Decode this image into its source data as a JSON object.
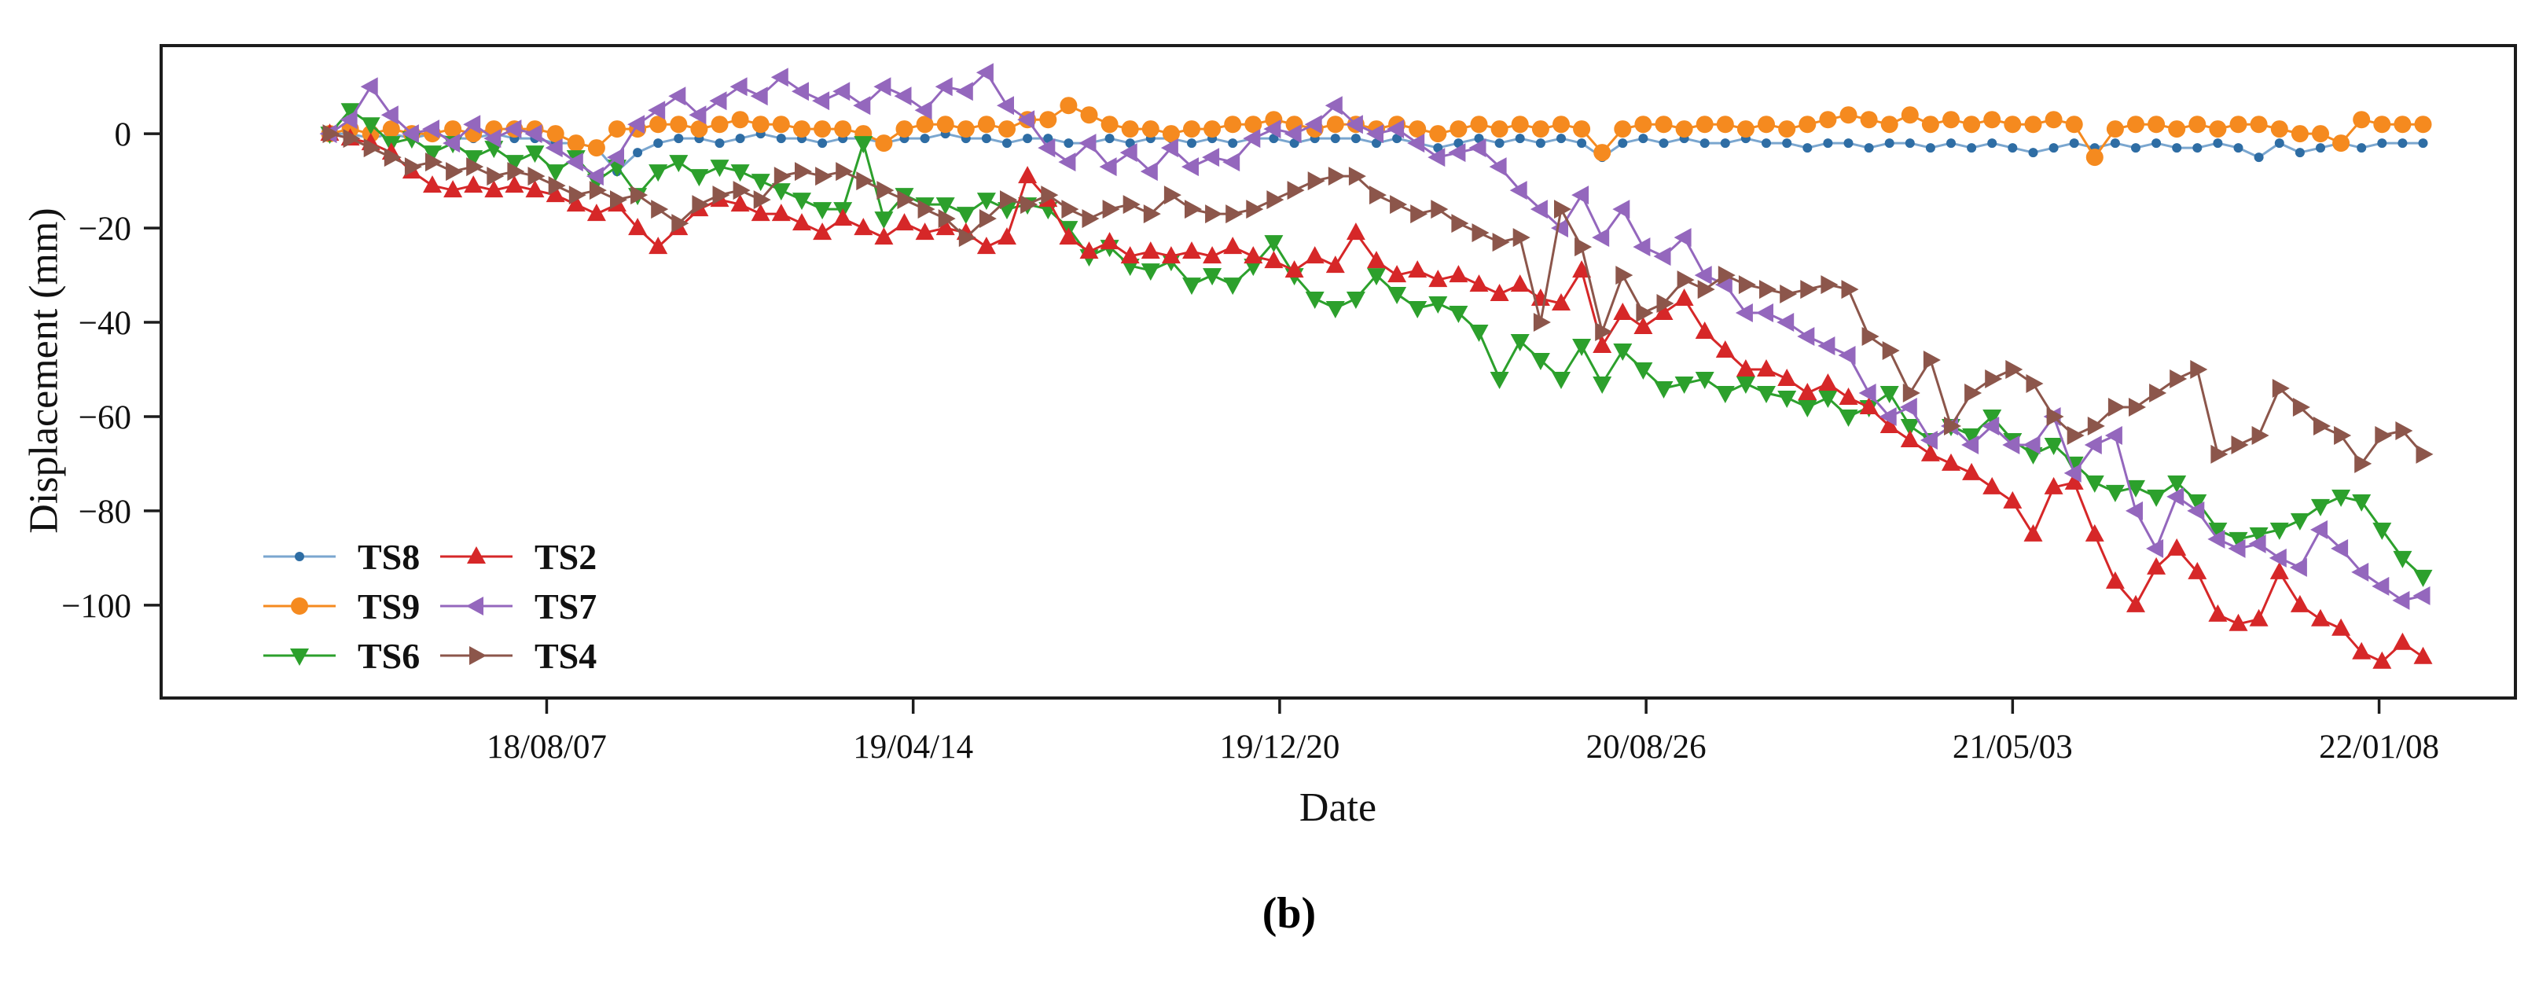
{
  "caption": "(b)",
  "chart_data": {
    "type": "line",
    "title": "",
    "xlabel": "Date",
    "ylabel": "Displacement (mm)",
    "grid": false,
    "legend_position": "lower-left-inside, two columns, no frame",
    "x_tick_labels": [
      "18/08/07",
      "19/04/14",
      "19/12/20",
      "20/08/26",
      "21/05/03",
      "22/01/08"
    ],
    "x_tick_days": [
      148,
      398,
      648,
      898,
      1148,
      1398
    ],
    "xlim_days": [
      -115,
      1491
    ],
    "y_ticks": [
      0,
      -20,
      -40,
      -60,
      -80,
      -100
    ],
    "ylim": [
      -119.7,
      18.7
    ],
    "x_start_day": 0,
    "x_step_days": 14,
    "axis_color": "#1c1c1c",
    "legend_order": [
      "TS8",
      "TS9",
      "TS6",
      "TS2",
      "TS7",
      "TS4"
    ],
    "series": [
      {
        "name": "TS8",
        "marker": "dot",
        "color": "#7aa6cf",
        "marker_color": "#2e6da4",
        "values": [
          0,
          0,
          -1,
          0,
          -1,
          0,
          -1,
          -1,
          0,
          -1,
          -1,
          -2,
          -2,
          -3,
          -8,
          -4,
          -2,
          -1,
          -1,
          -2,
          -1,
          0,
          -1,
          -1,
          -2,
          -1,
          -1,
          -2,
          -1,
          -1,
          0,
          -1,
          -1,
          -2,
          -1,
          -1,
          -2,
          -2,
          -1,
          -2,
          -1,
          -1,
          -2,
          -1,
          -2,
          -1,
          -1,
          -2,
          -1,
          -1,
          -1,
          -2,
          -1,
          -2,
          -3,
          -2,
          -1,
          -2,
          -1,
          -2,
          -1,
          -2,
          -5,
          -2,
          -1,
          -2,
          -1,
          -2,
          -2,
          -1,
          -2,
          -2,
          -3,
          -2,
          -2,
          -3,
          -2,
          -2,
          -3,
          -2,
          -3,
          -2,
          -3,
          -4,
          -3,
          -2,
          -3,
          -2,
          -3,
          -2,
          -3,
          -3,
          -2,
          -3,
          -5,
          -2,
          -4,
          -3,
          -2,
          -3,
          -2,
          -2,
          -2
        ]
      },
      {
        "name": "TS9",
        "marker": "circle",
        "color": "#f58a1f",
        "marker_color": "#f58a1f",
        "values": [
          0,
          1,
          0,
          1,
          0,
          0,
          1,
          0,
          1,
          1,
          1,
          0,
          -2,
          -3,
          1,
          1,
          2,
          2,
          1,
          2,
          3,
          2,
          2,
          1,
          1,
          1,
          0,
          -2,
          1,
          2,
          2,
          1,
          2,
          1,
          3,
          3,
          6,
          4,
          2,
          1,
          1,
          0,
          1,
          1,
          2,
          2,
          3,
          2,
          1,
          2,
          2,
          1,
          2,
          1,
          0,
          1,
          2,
          1,
          2,
          1,
          2,
          1,
          -4,
          1,
          2,
          2,
          1,
          2,
          2,
          1,
          2,
          1,
          2,
          3,
          4,
          3,
          2,
          4,
          2,
          3,
          2,
          3,
          2,
          2,
          3,
          2,
          -5,
          1,
          2,
          2,
          1,
          2,
          1,
          2,
          2,
          1,
          0,
          0,
          -2,
          3,
          2,
          2,
          2
        ]
      },
      {
        "name": "TS6",
        "marker": "triangle-down",
        "color": "#2ca02c",
        "marker_color": "#2ca02c",
        "values": [
          0,
          5,
          2,
          -2,
          -1,
          -4,
          -2,
          -5,
          -3,
          -6,
          -4,
          -8,
          -5,
          -10,
          -7,
          -13,
          -8,
          -6,
          -9,
          -7,
          -8,
          -10,
          -12,
          -14,
          -16,
          -16,
          -2,
          -18,
          -13,
          -15,
          -15,
          -17,
          -14,
          -16,
          -15,
          -16,
          -20,
          -26,
          -24,
          -28,
          -29,
          -27,
          -32,
          -30,
          -32,
          -28,
          -23,
          -30,
          -35,
          -37,
          -35,
          -30,
          -34,
          -37,
          -36,
          -38,
          -42,
          -52,
          -44,
          -48,
          -52,
          -45,
          -53,
          -46,
          -50,
          -54,
          -53,
          -52,
          -55,
          -53,
          -55,
          -56,
          -58,
          -56,
          -60,
          -58,
          -55,
          -62,
          -65,
          -62,
          -64,
          -60,
          -65,
          -68,
          -66,
          -70,
          -74,
          -76,
          -75,
          -77,
          -74,
          -78,
          -84,
          -86,
          -85,
          -84,
          -82,
          -79,
          -77,
          -78,
          -84,
          -90,
          -94
        ]
      },
      {
        "name": "TS2",
        "marker": "triangle-up",
        "color": "#d62728",
        "marker_color": "#d62728",
        "values": [
          0,
          -1,
          -2,
          -4,
          -8,
          -11,
          -12,
          -11,
          -12,
          -11,
          -12,
          -13,
          -15,
          -17,
          -15,
          -20,
          -24,
          -20,
          -16,
          -14,
          -15,
          -17,
          -17,
          -19,
          -21,
          -18,
          -20,
          -22,
          -19,
          -21,
          -20,
          -21,
          -24,
          -22,
          -9,
          -14,
          -22,
          -25,
          -23,
          -26,
          -25,
          -26,
          -25,
          -26,
          -24,
          -26,
          -27,
          -29,
          -26,
          -28,
          -21,
          -27,
          -30,
          -29,
          -31,
          -30,
          -32,
          -34,
          -32,
          -35,
          -36,
          -29,
          -45,
          -38,
          -41,
          -38,
          -35,
          -42,
          -46,
          -50,
          -50,
          -52,
          -55,
          -53,
          -56,
          -58,
          -62,
          -65,
          -68,
          -70,
          -72,
          -75,
          -78,
          -85,
          -75,
          -74,
          -85,
          -95,
          -100,
          -92,
          -88,
          -93,
          -102,
          -104,
          -103,
          -93,
          -100,
          -103,
          -105,
          -110,
          -112,
          -108,
          -111
        ]
      },
      {
        "name": "TS7",
        "marker": "triangle-left",
        "color": "#9467bd",
        "marker_color": "#9467bd",
        "values": [
          0,
          3,
          10,
          4,
          0,
          1,
          -2,
          2,
          -1,
          1,
          0,
          -3,
          -6,
          -9,
          -5,
          2,
          5,
          8,
          4,
          7,
          10,
          8,
          12,
          9,
          7,
          9,
          6,
          10,
          8,
          5,
          10,
          9,
          13,
          6,
          3,
          -3,
          -6,
          -2,
          -7,
          -4,
          -8,
          -3,
          -7,
          -5,
          -6,
          -1,
          1,
          0,
          2,
          6,
          2,
          0,
          1,
          -2,
          -5,
          -4,
          -3,
          -7,
          -12,
          -16,
          -20,
          -13,
          -22,
          -16,
          -24,
          -26,
          -22,
          -30,
          -32,
          -38,
          -38,
          -40,
          -43,
          -45,
          -47,
          -55,
          -60,
          -58,
          -65,
          -62,
          -66,
          -62,
          -66,
          -66,
          -60,
          -72,
          -66,
          -64,
          -80,
          -88,
          -77,
          -80,
          -86,
          -88,
          -87,
          -90,
          -92,
          -84,
          -88,
          -93,
          -96,
          -99,
          -98
        ]
      },
      {
        "name": "TS4",
        "marker": "triangle-right",
        "color": "#8c564b",
        "marker_color": "#8c564b",
        "values": [
          0,
          -1,
          -3,
          -5,
          -7,
          -6,
          -8,
          -7,
          -9,
          -8,
          -9,
          -11,
          -13,
          -12,
          -14,
          -13,
          -16,
          -19,
          -15,
          -13,
          -12,
          -14,
          -9,
          -8,
          -9,
          -8,
          -10,
          -12,
          -14,
          -16,
          -18,
          -22,
          -18,
          -14,
          -15,
          -13,
          -16,
          -18,
          -16,
          -15,
          -17,
          -13,
          -16,
          -17,
          -17,
          -16,
          -14,
          -12,
          -10,
          -9,
          -9,
          -13,
          -15,
          -17,
          -16,
          -19,
          -21,
          -23,
          -22,
          -40,
          -16,
          -24,
          -42,
          -30,
          -38,
          -36,
          -31,
          -33,
          -30,
          -32,
          -33,
          -34,
          -33,
          -32,
          -33,
          -43,
          -46,
          -55,
          -48,
          -62,
          -55,
          -52,
          -50,
          -53,
          -60,
          -64,
          -62,
          -58,
          -58,
          -55,
          -52,
          -50,
          -68,
          -66,
          -64,
          -54,
          -58,
          -62,
          -64,
          -70,
          -64,
          -63,
          -68
        ]
      }
    ]
  }
}
